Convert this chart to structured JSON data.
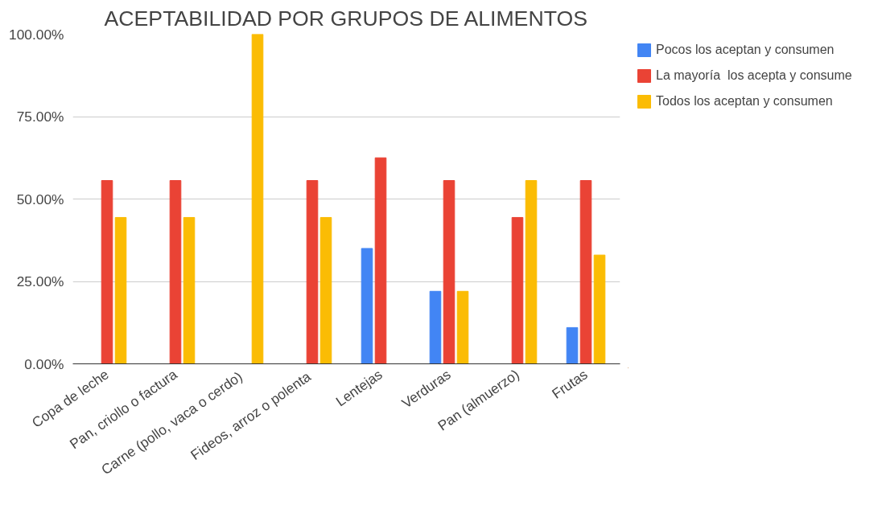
{
  "chart_data": {
    "type": "bar",
    "title": "ACEPTABILIDAD POR GRUPOS DE ALIMENTOS",
    "categories": [
      "Copa de leche",
      "Pan, criollo o factura",
      "Carne (pollo, vaca o  cerdo)",
      "Fideos,  arroz o polenta",
      "Lentejas",
      "Verduras",
      "Pan (almuerzo)",
      "Frutas"
    ],
    "series": [
      {
        "name": "Pocos los aceptan y consumen",
        "color": "#4285f4",
        "values": [
          0,
          0,
          0,
          0,
          35,
          22,
          0,
          11
        ]
      },
      {
        "name": "La mayoría  los acepta y consume",
        "color": "#ea4335",
        "values": [
          55.6,
          55.6,
          0,
          55.6,
          62.5,
          55.6,
          44.4,
          55.6
        ]
      },
      {
        "name": "Todos los aceptan y consumen",
        "color": "#fbbc04",
        "values": [
          44.4,
          44.4,
          100,
          44.4,
          0,
          22,
          55.6,
          33
        ]
      }
    ],
    "ylim": [
      0,
      100
    ],
    "yticks": [
      {
        "value": 0,
        "label": "0.00%"
      },
      {
        "value": 25,
        "label": "25.00%"
      },
      {
        "value": 50,
        "label": "50.00%"
      },
      {
        "value": 75,
        "label": "75.00%"
      },
      {
        "value": 100,
        "label": "100.00%"
      }
    ],
    "grid": "y",
    "legend": "right"
  }
}
